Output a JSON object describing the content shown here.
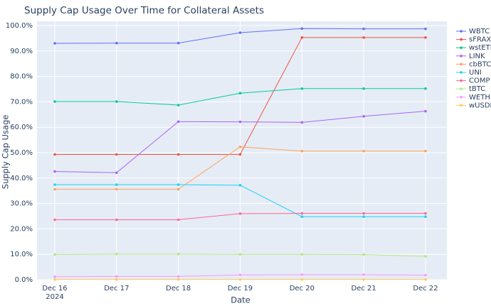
{
  "chart_data": {
    "type": "line",
    "title": "Supply Cap Usage Over Time for Collateral Assets",
    "x_label": "Date",
    "y_label": "Supply Cap Usage",
    "x": [
      "2024-12-16",
      "2024-12-17",
      "2024-12-18",
      "2024-12-19",
      "2024-12-20",
      "2024-12-21",
      "2024-12-22"
    ],
    "xticks": [
      {
        "value": "2024-12-16",
        "label": [
          "Dec 16",
          "2024"
        ]
      },
      {
        "value": "2024-12-17",
        "label": [
          "Dec 17"
        ]
      },
      {
        "value": "2024-12-18",
        "label": [
          "Dec 18"
        ]
      },
      {
        "value": "2024-12-19",
        "label": [
          "Dec 19"
        ]
      },
      {
        "value": "2024-12-20",
        "label": [
          "Dec 20"
        ]
      },
      {
        "value": "2024-12-21",
        "label": [
          "Dec 21"
        ]
      },
      {
        "value": "2024-12-22",
        "label": [
          "Dec 22"
        ]
      }
    ],
    "ylim": [
      0,
      100
    ],
    "yticks": [
      {
        "value": 0,
        "label": "0.0%"
      },
      {
        "value": 10,
        "label": "10.0%"
      },
      {
        "value": 20,
        "label": "20.0%"
      },
      {
        "value": 30,
        "label": "30.0%"
      },
      {
        "value": 40,
        "label": "40.0%"
      },
      {
        "value": 50,
        "label": "50.0%"
      },
      {
        "value": 60,
        "label": "60.0%"
      },
      {
        "value": 70,
        "label": "70.0%"
      },
      {
        "value": 80,
        "label": "80.0%"
      },
      {
        "value": 90,
        "label": "90.0%"
      },
      {
        "value": 100,
        "label": "100.0%"
      }
    ],
    "grid": true,
    "legend": "right",
    "series": [
      {
        "name": "WBTC",
        "color": "#636efa",
        "values": [
          93.0,
          93.1,
          93.1,
          97.2,
          98.8,
          98.7,
          98.7
        ]
      },
      {
        "name": "sFRAX",
        "color": "#ef553b",
        "values": [
          49.3,
          49.3,
          49.3,
          49.3,
          95.3,
          95.3,
          95.3
        ]
      },
      {
        "name": "wstETH",
        "color": "#00cc96",
        "values": [
          70.1,
          70.1,
          68.7,
          73.4,
          75.2,
          75.2,
          75.2
        ]
      },
      {
        "name": "LINK",
        "color": "#ab63fa",
        "values": [
          42.6,
          42.1,
          62.2,
          62.1,
          61.9,
          64.3,
          66.3
        ]
      },
      {
        "name": "cbBTC",
        "color": "#ffa15a",
        "values": [
          35.6,
          35.6,
          35.6,
          52.3,
          50.6,
          50.6,
          50.6
        ]
      },
      {
        "name": "UNI",
        "color": "#19d3f3",
        "values": [
          37.4,
          37.4,
          37.4,
          37.2,
          24.8,
          24.8,
          24.8
        ]
      },
      {
        "name": "COMP",
        "color": "#ff6692",
        "values": [
          23.6,
          23.6,
          23.6,
          26.0,
          26.1,
          26.1,
          26.1
        ]
      },
      {
        "name": "tBTC",
        "color": "#b6e880",
        "values": [
          9.9,
          10.1,
          10.1,
          10.0,
          10.0,
          9.9,
          9.2
        ]
      },
      {
        "name": "WETH",
        "color": "#ff97ff",
        "values": [
          1.2,
          1.3,
          1.3,
          1.9,
          2.0,
          2.0,
          1.8
        ]
      },
      {
        "name": "wUSDM",
        "color": "#fecb52",
        "values": [
          0.1,
          0.1,
          0.1,
          0.1,
          0.1,
          0.1,
          0.1
        ]
      }
    ]
  }
}
